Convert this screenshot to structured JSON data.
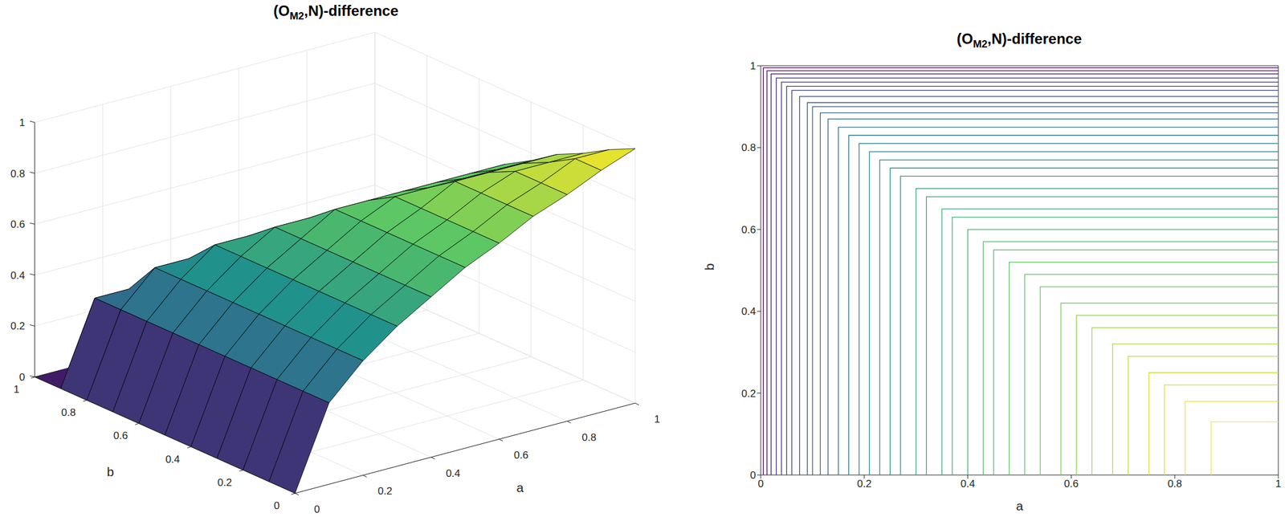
{
  "chart_data": [
    {
      "type": "surface",
      "title": "(OM2,N)-difference",
      "title_subscript": "M2",
      "xlabel": "a",
      "ylabel": "b",
      "x": [
        0,
        0.1,
        0.2,
        0.3,
        0.4,
        0.5,
        0.6,
        0.7,
        0.8,
        0.9,
        1
      ],
      "y": [
        0,
        0.1,
        0.2,
        0.3,
        0.4,
        0.5,
        0.6,
        0.7,
        0.8,
        0.9,
        1
      ],
      "z": [
        [
          0,
          0.32,
          0.45,
          0.55,
          0.63,
          0.71,
          0.77,
          0.84,
          0.89,
          0.95,
          1
        ],
        [
          0,
          0.32,
          0.45,
          0.55,
          0.63,
          0.71,
          0.77,
          0.84,
          0.89,
          0.95,
          0.95
        ],
        [
          0,
          0.32,
          0.45,
          0.55,
          0.63,
          0.71,
          0.77,
          0.84,
          0.89,
          0.89,
          0.89
        ],
        [
          0,
          0.32,
          0.45,
          0.55,
          0.63,
          0.71,
          0.77,
          0.84,
          0.84,
          0.84,
          0.84
        ],
        [
          0,
          0.32,
          0.45,
          0.55,
          0.63,
          0.71,
          0.77,
          0.77,
          0.77,
          0.77,
          0.77
        ],
        [
          0,
          0.32,
          0.45,
          0.55,
          0.63,
          0.71,
          0.71,
          0.71,
          0.71,
          0.71,
          0.71
        ],
        [
          0,
          0.32,
          0.45,
          0.55,
          0.63,
          0.63,
          0.63,
          0.63,
          0.63,
          0.63,
          0.63
        ],
        [
          0,
          0.32,
          0.45,
          0.55,
          0.55,
          0.55,
          0.55,
          0.55,
          0.55,
          0.55,
          0.55
        ],
        [
          0,
          0.32,
          0.45,
          0.45,
          0.45,
          0.45,
          0.45,
          0.45,
          0.45,
          0.45,
          0.45
        ],
        [
          0,
          0.32,
          0.32,
          0.32,
          0.32,
          0.32,
          0.32,
          0.32,
          0.32,
          0.32,
          0.32
        ],
        [
          0,
          0,
          0,
          0,
          0,
          0,
          0,
          0,
          0,
          0,
          0
        ]
      ],
      "xlim": [
        0,
        1
      ],
      "ylim": [
        0,
        1
      ],
      "zlim": [
        0,
        1
      ],
      "xticks": [
        0,
        0.2,
        0.4,
        0.6,
        0.8,
        1
      ],
      "yticks": [
        0,
        0.2,
        0.4,
        0.6,
        0.8,
        1
      ],
      "zticks": [
        0,
        0.2,
        0.4,
        0.6,
        0.8,
        1
      ],
      "grid": true
    },
    {
      "type": "contour",
      "title": "(OM2,N)-difference",
      "title_subscript": "M2",
      "xlabel": "a",
      "ylabel": "b",
      "xlim": [
        0,
        1
      ],
      "ylim": [
        0,
        1
      ],
      "xticks": [
        0,
        0.2,
        0.4,
        0.6,
        0.8,
        1
      ],
      "yticks": [
        0,
        0.2,
        0.4,
        0.6,
        0.8,
        1
      ],
      "contours": [
        {
          "level": 0.07,
          "a": [
            0.005,
            0.005,
            1
          ],
          "b": [
            0,
            0.995,
            0.995
          ]
        },
        {
          "level": 0.11,
          "a": [
            0.012,
            0.012,
            1
          ],
          "b": [
            0,
            0.988,
            0.988
          ]
        },
        {
          "level": 0.14,
          "a": [
            0.02,
            0.02,
            1
          ],
          "b": [
            0,
            0.98,
            0.98
          ]
        },
        {
          "level": 0.17,
          "a": [
            0.03,
            0.03,
            1
          ],
          "b": [
            0,
            0.97,
            0.97
          ]
        },
        {
          "level": 0.2,
          "a": [
            0.04,
            0.04,
            1
          ],
          "b": [
            0,
            0.96,
            0.96
          ]
        },
        {
          "level": 0.22,
          "a": [
            0.05,
            0.05,
            1
          ],
          "b": [
            0,
            0.95,
            0.95
          ]
        },
        {
          "level": 0.24,
          "a": [
            0.06,
            0.06,
            1
          ],
          "b": [
            0,
            0.94,
            0.94
          ]
        },
        {
          "level": 0.27,
          "a": [
            0.075,
            0.075,
            1
          ],
          "b": [
            0,
            0.925,
            0.925
          ]
        },
        {
          "level": 0.3,
          "a": [
            0.09,
            0.09,
            1
          ],
          "b": [
            0,
            0.91,
            0.91
          ]
        },
        {
          "level": 0.32,
          "a": [
            0.1,
            0.1,
            1
          ],
          "b": [
            0,
            0.9,
            0.9
          ]
        },
        {
          "level": 0.34,
          "a": [
            0.115,
            0.115,
            1
          ],
          "b": [
            0,
            0.885,
            0.885
          ]
        },
        {
          "level": 0.36,
          "a": [
            0.13,
            0.13,
            1
          ],
          "b": [
            0,
            0.87,
            0.87
          ]
        },
        {
          "level": 0.39,
          "a": [
            0.15,
            0.15,
            1
          ],
          "b": [
            0,
            0.85,
            0.85
          ]
        },
        {
          "level": 0.41,
          "a": [
            0.17,
            0.17,
            1
          ],
          "b": [
            0,
            0.83,
            0.83
          ]
        },
        {
          "level": 0.44,
          "a": [
            0.19,
            0.19,
            1
          ],
          "b": [
            0,
            0.81,
            0.81
          ]
        },
        {
          "level": 0.46,
          "a": [
            0.21,
            0.21,
            1
          ],
          "b": [
            0,
            0.79,
            0.79
          ]
        },
        {
          "level": 0.48,
          "a": [
            0.23,
            0.23,
            1
          ],
          "b": [
            0,
            0.77,
            0.77
          ]
        },
        {
          "level": 0.5,
          "a": [
            0.25,
            0.25,
            1
          ],
          "b": [
            0,
            0.75,
            0.75
          ]
        },
        {
          "level": 0.52,
          "a": [
            0.27,
            0.27,
            1
          ],
          "b": [
            0,
            0.73,
            0.73
          ]
        },
        {
          "level": 0.55,
          "a": [
            0.3,
            0.3,
            1
          ],
          "b": [
            0,
            0.7,
            0.7
          ]
        },
        {
          "level": 0.57,
          "a": [
            0.32,
            0.32,
            1
          ],
          "b": [
            0,
            0.68,
            0.68
          ]
        },
        {
          "level": 0.59,
          "a": [
            0.35,
            0.35,
            1
          ],
          "b": [
            0,
            0.65,
            0.65
          ]
        },
        {
          "level": 0.61,
          "a": [
            0.37,
            0.37,
            1
          ],
          "b": [
            0,
            0.63,
            0.63
          ]
        },
        {
          "level": 0.63,
          "a": [
            0.4,
            0.4,
            1
          ],
          "b": [
            0,
            0.6,
            0.6
          ]
        },
        {
          "level": 0.66,
          "a": [
            0.43,
            0.43,
            1
          ],
          "b": [
            0,
            0.57,
            0.57
          ]
        },
        {
          "level": 0.67,
          "a": [
            0.45,
            0.45,
            1
          ],
          "b": [
            0,
            0.55,
            0.55
          ]
        },
        {
          "level": 0.69,
          "a": [
            0.48,
            0.48,
            1
          ],
          "b": [
            0,
            0.52,
            0.52
          ]
        },
        {
          "level": 0.71,
          "a": [
            0.51,
            0.51,
            1
          ],
          "b": [
            0,
            0.49,
            0.49
          ]
        },
        {
          "level": 0.73,
          "a": [
            0.54,
            0.54,
            1
          ],
          "b": [
            0,
            0.46,
            0.46
          ]
        },
        {
          "level": 0.76,
          "a": [
            0.58,
            0.58,
            1
          ],
          "b": [
            0,
            0.42,
            0.42
          ]
        },
        {
          "level": 0.78,
          "a": [
            0.61,
            0.61,
            1
          ],
          "b": [
            0,
            0.39,
            0.39
          ]
        },
        {
          "level": 0.8,
          "a": [
            0.64,
            0.64,
            1
          ],
          "b": [
            0,
            0.36,
            0.36
          ]
        },
        {
          "level": 0.82,
          "a": [
            0.68,
            0.68,
            1
          ],
          "b": [
            0,
            0.32,
            0.32
          ]
        },
        {
          "level": 0.84,
          "a": [
            0.71,
            0.71,
            1
          ],
          "b": [
            0,
            0.29,
            0.29
          ]
        },
        {
          "level": 0.87,
          "a": [
            0.75,
            0.75,
            1
          ],
          "b": [
            0,
            0.25,
            0.25
          ]
        },
        {
          "level": 0.88,
          "a": [
            0.78,
            0.78,
            1
          ],
          "b": [
            0,
            0.22,
            0.22
          ]
        },
        {
          "level": 0.91,
          "a": [
            0.82,
            0.82,
            1
          ],
          "b": [
            0,
            0.18,
            0.18
          ]
        },
        {
          "level": 0.93,
          "a": [
            0.87,
            0.87,
            1
          ],
          "b": [
            0,
            0.13,
            0.13
          ]
        }
      ]
    }
  ]
}
